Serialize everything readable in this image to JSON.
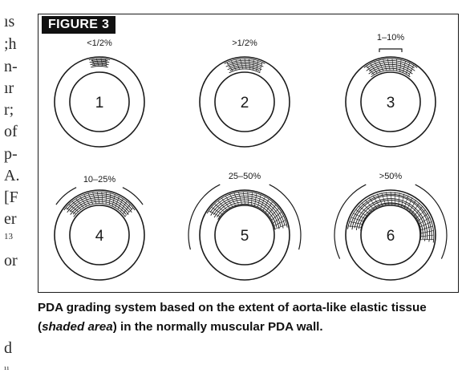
{
  "left_fragments": [
    "ıs",
    ";h",
    "n-",
    "ır",
    "r;",
    "of",
    "p-",
    "A.",
    "[F",
    "er",
    "13",
    "or",
    "d",
    "¹¹"
  ],
  "figure": {
    "label": "FIGURE 3",
    "panels": [
      {
        "number": "1",
        "range": "<1/2%"
      },
      {
        "number": "2",
        "range": ">1/2%"
      },
      {
        "number": "3",
        "range": "1–10%"
      },
      {
        "number": "4",
        "range": "10–25%"
      },
      {
        "number": "5",
        "range": "25–50%"
      },
      {
        "number": "6",
        "range": ">50%"
      }
    ]
  },
  "caption": {
    "before": "PDA grading system based on the extent of aorta-like elastic tissue (",
    "emph": "shaded area",
    "after": ") in the normally muscular PDA wall."
  },
  "colors": {
    "ink": "#1a1a1a",
    "label_bg": "#111111",
    "label_text": "#ffffff"
  }
}
